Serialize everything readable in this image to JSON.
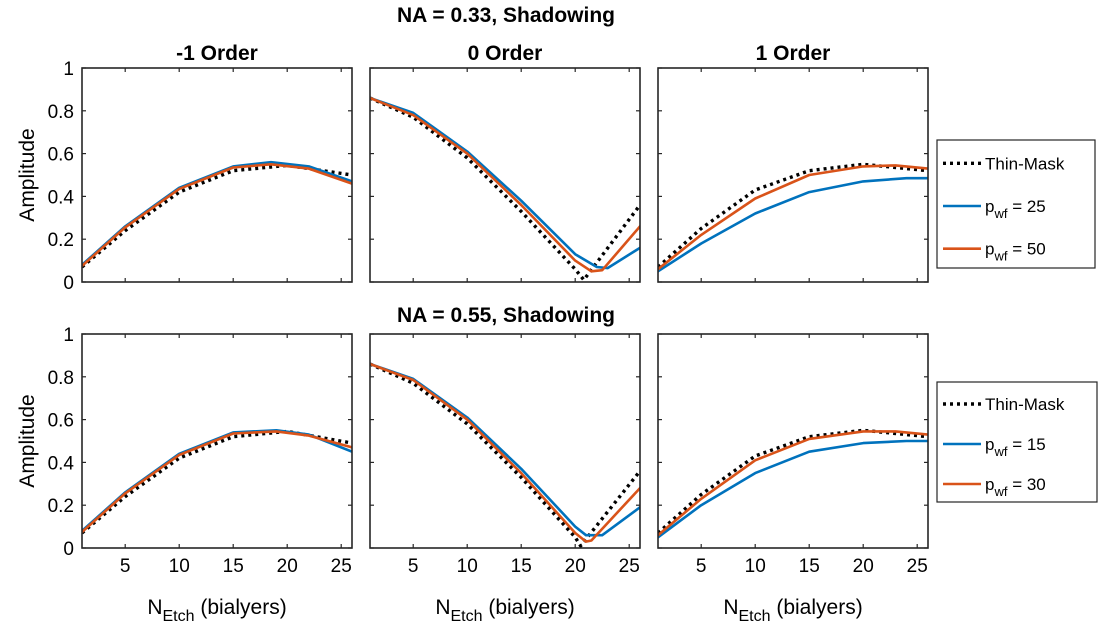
{
  "chart_data": {
    "type": "line",
    "x_axis": {
      "label_main": "N",
      "label_sub": "Etch",
      "label_rest": " (bialyers)",
      "range": [
        1,
        26
      ],
      "ticks": [
        "5",
        "10",
        "15",
        "20",
        "25"
      ]
    },
    "y_axis": {
      "label": "Amplitude",
      "range": [
        0,
        1
      ],
      "ticks": [
        "0",
        "0.2",
        "0.4",
        "0.6",
        "0.8",
        "1"
      ]
    },
    "panel_titles": [
      "-1 Order",
      "0 Order",
      "1 Order"
    ],
    "rows": [
      {
        "title": "NA = 0.33, Shadowing",
        "legend": [
          {
            "main": "Thin-Mask",
            "sub": "",
            "rest": "",
            "color": "#000000",
            "style": "dotted"
          },
          {
            "main": "p",
            "sub": "wf",
            "rest": " = 25",
            "color": "#0072BD",
            "style": "solid"
          },
          {
            "main": "p",
            "sub": "wf",
            "rest": " = 50",
            "color": "#D95319",
            "style": "solid"
          }
        ],
        "panels": [
          {
            "order": "-1 Order",
            "series": [
              {
                "name": "Thin-Mask",
                "x": [
                  1,
                  5,
                  10,
                  15,
                  20,
                  26
                ],
                "y": [
                  0.07,
                  0.24,
                  0.42,
                  0.52,
                  0.545,
                  0.5
                ]
              },
              {
                "name": "p_wf = 25",
                "x": [
                  1,
                  5,
                  10,
                  15,
                  18.5,
                  22,
                  26
                ],
                "y": [
                  0.08,
                  0.26,
                  0.44,
                  0.54,
                  0.56,
                  0.54,
                  0.47
                ]
              },
              {
                "name": "p_wf = 50",
                "x": [
                  1,
                  5,
                  10,
                  15,
                  18.5,
                  22,
                  26
                ],
                "y": [
                  0.075,
                  0.255,
                  0.435,
                  0.535,
                  0.55,
                  0.53,
                  0.46
                ]
              }
            ]
          },
          {
            "order": "0 Order",
            "series": [
              {
                "name": "Thin-Mask",
                "x": [
                  1,
                  5,
                  10,
                  15,
                  20,
                  20.8,
                  26
                ],
                "y": [
                  0.86,
                  0.77,
                  0.58,
                  0.33,
                  0.06,
                  0.01,
                  0.36
                ]
              },
              {
                "name": "p_wf = 25",
                "x": [
                  1,
                  5,
                  10,
                  15,
                  20,
                  22,
                  23,
                  26
                ],
                "y": [
                  0.86,
                  0.79,
                  0.61,
                  0.38,
                  0.13,
                  0.07,
                  0.065,
                  0.16
                ]
              },
              {
                "name": "p_wf = 50",
                "x": [
                  1,
                  5,
                  10,
                  15,
                  20,
                  21.5,
                  22.5,
                  26
                ],
                "y": [
                  0.86,
                  0.78,
                  0.6,
                  0.36,
                  0.1,
                  0.05,
                  0.055,
                  0.26
                ]
              }
            ]
          },
          {
            "order": "1 Order",
            "series": [
              {
                "name": "Thin-Mask",
                "x": [
                  1,
                  5,
                  10,
                  15,
                  20,
                  26
                ],
                "y": [
                  0.07,
                  0.25,
                  0.43,
                  0.52,
                  0.55,
                  0.52
                ]
              },
              {
                "name": "p_wf = 25",
                "x": [
                  1,
                  5,
                  10,
                  15,
                  20,
                  24,
                  26
                ],
                "y": [
                  0.05,
                  0.18,
                  0.32,
                  0.42,
                  0.47,
                  0.485,
                  0.485
                ]
              },
              {
                "name": "p_wf = 50",
                "x": [
                  1,
                  5,
                  10,
                  15,
                  20,
                  23,
                  26
                ],
                "y": [
                  0.06,
                  0.22,
                  0.39,
                  0.5,
                  0.54,
                  0.545,
                  0.53
                ]
              }
            ]
          }
        ]
      },
      {
        "title": "NA = 0.55, Shadowing",
        "legend": [
          {
            "main": "Thin-Mask",
            "sub": "",
            "rest": "",
            "color": "#000000",
            "style": "dotted"
          },
          {
            "main": "p",
            "sub": "wf",
            "rest": " = 15",
            "color": "#0072BD",
            "style": "solid"
          },
          {
            "main": "p",
            "sub": "wf",
            "rest": " = 30",
            "color": "#D95319",
            "style": "solid"
          }
        ],
        "panels": [
          {
            "order": "-1 Order",
            "series": [
              {
                "name": "Thin-Mask",
                "x": [
                  1,
                  5,
                  10,
                  15,
                  20,
                  26
                ],
                "y": [
                  0.07,
                  0.24,
                  0.42,
                  0.52,
                  0.545,
                  0.49
                ]
              },
              {
                "name": "p_wf = 15",
                "x": [
                  1,
                  5,
                  10,
                  15,
                  19,
                  22,
                  26
                ],
                "y": [
                  0.08,
                  0.26,
                  0.44,
                  0.54,
                  0.55,
                  0.53,
                  0.45
                ]
              },
              {
                "name": "p_wf = 30",
                "x": [
                  1,
                  5,
                  10,
                  15,
                  19,
                  22,
                  26
                ],
                "y": [
                  0.075,
                  0.255,
                  0.435,
                  0.535,
                  0.545,
                  0.525,
                  0.47
                ]
              }
            ]
          },
          {
            "order": "0 Order",
            "series": [
              {
                "name": "Thin-Mask",
                "x": [
                  1,
                  5,
                  10,
                  15,
                  20,
                  20.5,
                  26
                ],
                "y": [
                  0.86,
                  0.77,
                  0.58,
                  0.33,
                  0.05,
                  0.01,
                  0.36
                ]
              },
              {
                "name": "p_wf = 15",
                "x": [
                  1,
                  5,
                  10,
                  15,
                  20,
                  21,
                  22.5,
                  26
                ],
                "y": [
                  0.86,
                  0.79,
                  0.61,
                  0.37,
                  0.1,
                  0.06,
                  0.06,
                  0.19
                ]
              },
              {
                "name": "p_wf = 30",
                "x": [
                  1,
                  5,
                  10,
                  15,
                  20,
                  21,
                  21.5,
                  26
                ],
                "y": [
                  0.86,
                  0.785,
                  0.6,
                  0.35,
                  0.07,
                  0.03,
                  0.035,
                  0.28
                ]
              }
            ]
          },
          {
            "order": "1 Order",
            "series": [
              {
                "name": "Thin-Mask",
                "x": [
                  1,
                  5,
                  10,
                  15,
                  20,
                  26
                ],
                "y": [
                  0.07,
                  0.25,
                  0.43,
                  0.52,
                  0.55,
                  0.52
                ]
              },
              {
                "name": "p_wf = 15",
                "x": [
                  1,
                  5,
                  10,
                  15,
                  20,
                  24,
                  26
                ],
                "y": [
                  0.05,
                  0.2,
                  0.35,
                  0.45,
                  0.49,
                  0.5,
                  0.5
                ]
              },
              {
                "name": "p_wf = 30",
                "x": [
                  1,
                  5,
                  10,
                  15,
                  20,
                  23,
                  26
                ],
                "y": [
                  0.06,
                  0.23,
                  0.41,
                  0.51,
                  0.545,
                  0.545,
                  0.53
                ]
              }
            ]
          }
        ]
      }
    ]
  }
}
